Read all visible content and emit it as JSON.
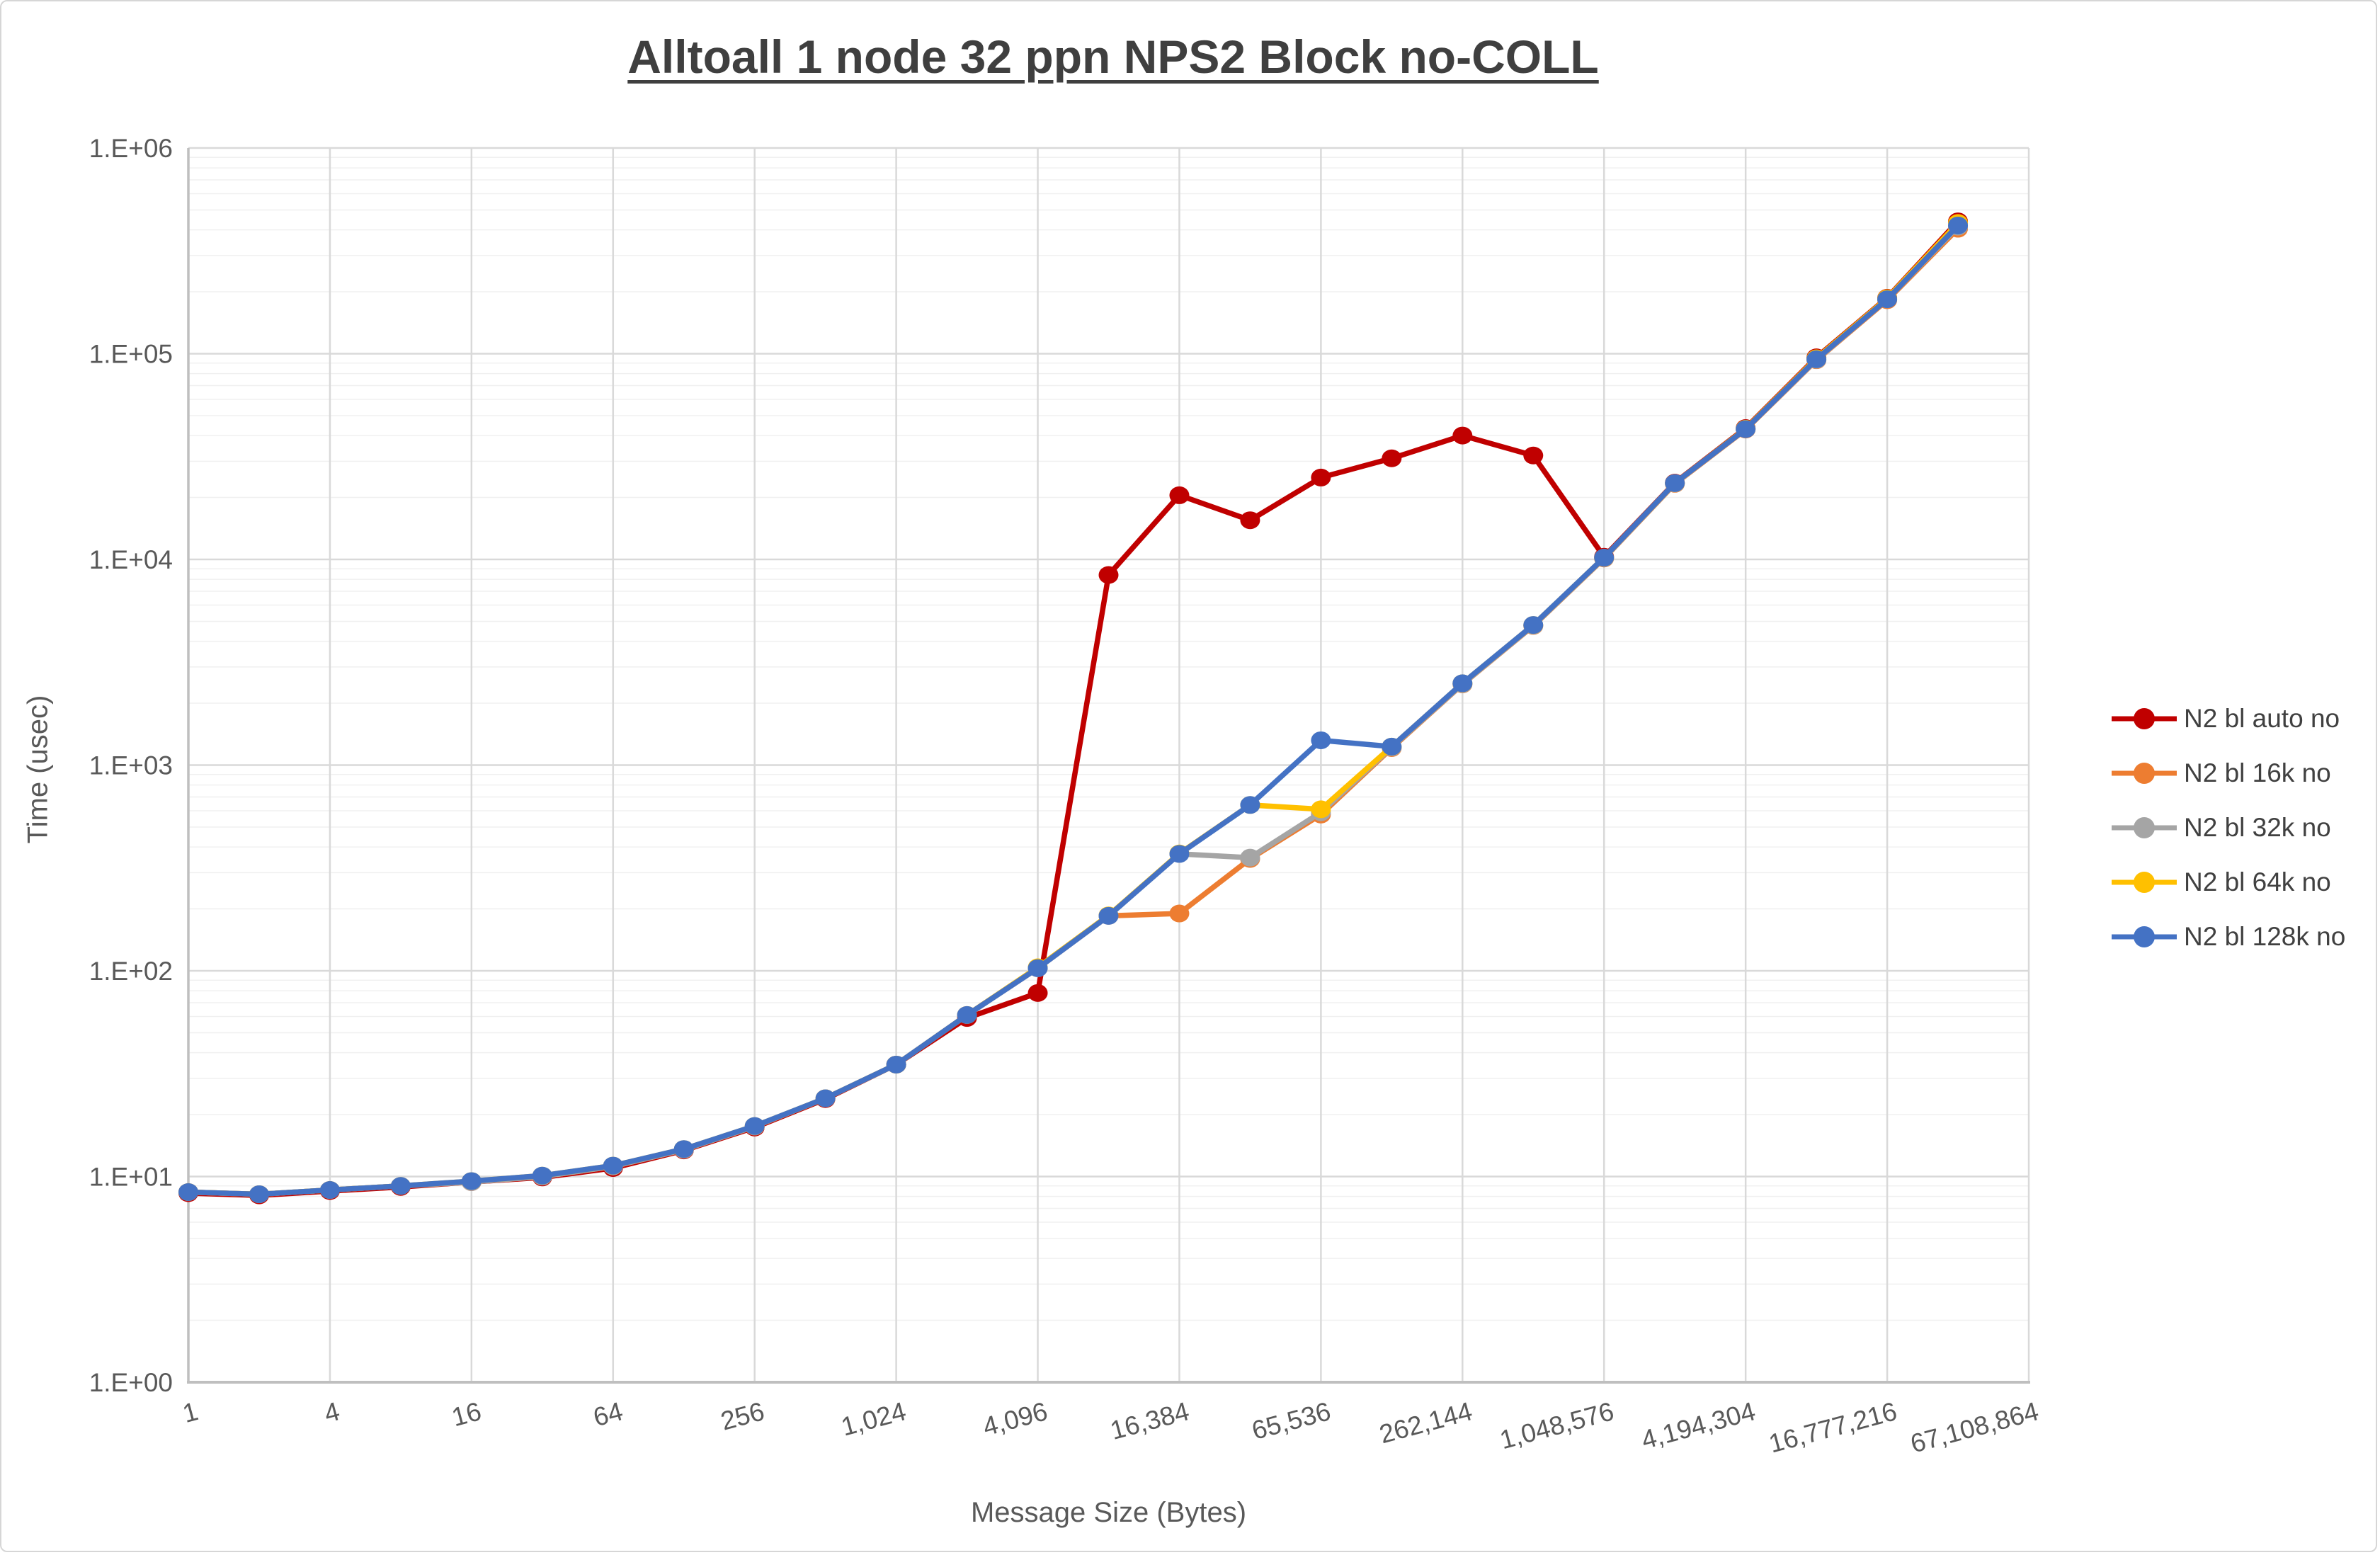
{
  "chart_data": {
    "type": "line",
    "title": "Alltoall 1 node 32 ppn NPS2 Block no-COLL",
    "xlabel": "Message Size (Bytes)",
    "ylabel": "Time (usec)",
    "x_scale": "log2-categories",
    "y_scale": "log10",
    "ylim": [
      1,
      1000000
    ],
    "grid": "major+minor",
    "legend_position": "right-middle",
    "y_tick_labels": [
      "1.E+00",
      "1.E+01",
      "1.E+02",
      "1.E+03",
      "1.E+04",
      "1.E+05",
      "1.E+06"
    ],
    "x_tick_labels": [
      "1",
      "4",
      "16",
      "64",
      "256",
      "1,024",
      "4,096",
      "16,384",
      "65,536",
      "262,144",
      "1,048,576",
      "4,194,304",
      "16,777,216",
      "67,108,864"
    ],
    "categories": [
      1,
      2,
      4,
      8,
      16,
      32,
      64,
      128,
      256,
      512,
      1024,
      2048,
      4096,
      8192,
      16384,
      32768,
      65536,
      131072,
      262144,
      524288,
      1048576,
      2097152,
      4194304,
      8388608,
      16777216,
      33554432,
      67108864
    ],
    "series": [
      {
        "name": "N2 bl auto no",
        "color": "#C00000",
        "values": [
          8.3,
          8.1,
          8.5,
          8.9,
          9.4,
          9.9,
          11.0,
          13.4,
          17.3,
          23.8,
          35,
          59,
          78,
          8400,
          20500,
          15500,
          25000,
          31000,
          40000,
          32000,
          10300,
          23600,
          43500,
          96000,
          187000,
          440000,
          null
        ]
      },
      {
        "name": "N2 bl 16k no",
        "color": "#ED7D31",
        "values": [
          8.4,
          8.2,
          8.6,
          9.0,
          9.4,
          10.0,
          11.2,
          13.5,
          17.5,
          24,
          35,
          61,
          103,
          185,
          190,
          350,
          575,
          1210,
          2470,
          4750,
          10100,
          23300,
          42800,
          93000,
          182000,
          405000,
          null
        ]
      },
      {
        "name": "N2 bl 32k no",
        "color": "#A5A5A5",
        "values": [
          8.4,
          8.2,
          8.6,
          9.0,
          9.4,
          10.0,
          11.2,
          13.5,
          17.5,
          24,
          35,
          61,
          103,
          185,
          370,
          355,
          590,
          1220,
          2480,
          4770,
          10150,
          23400,
          43000,
          93500,
          184000,
          415000,
          null
        ]
      },
      {
        "name": "N2 bl 64k no",
        "color": "#FFC000",
        "values": [
          8.4,
          8.2,
          8.6,
          9.0,
          9.5,
          10.1,
          11.3,
          13.6,
          17.6,
          24,
          35,
          61,
          104,
          186,
          372,
          640,
          610,
          1230,
          2500,
          4800,
          10200,
          23500,
          43200,
          95000,
          186000,
          432000,
          null
        ]
      },
      {
        "name": "N2 bl 128k no",
        "color": "#4472C4",
        "values": [
          8.4,
          8.2,
          8.6,
          9.0,
          9.5,
          10.1,
          11.3,
          13.6,
          17.6,
          24,
          35,
          61,
          103,
          185,
          370,
          640,
          1320,
          1230,
          2500,
          4800,
          10200,
          23500,
          43000,
          94000,
          184000,
          420000,
          null
        ]
      }
    ]
  }
}
